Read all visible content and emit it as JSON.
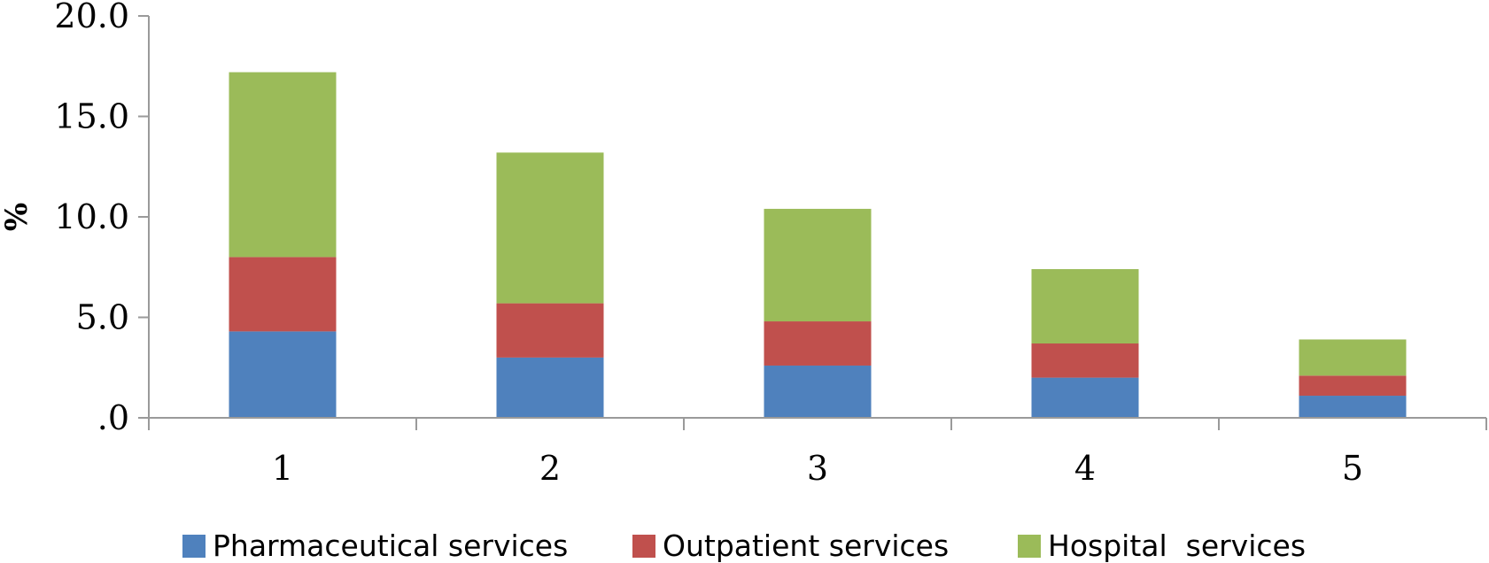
{
  "chart_data": {
    "type": "bar",
    "stacked": true,
    "categories": [
      "1",
      "2",
      "3",
      "4",
      "5"
    ],
    "series": [
      {
        "name": "Pharmaceutical services",
        "color": "#4f81bd",
        "values": [
          4.3,
          3.0,
          2.6,
          2.0,
          1.1
        ]
      },
      {
        "name": "Outpatient services",
        "color": "#c0504d",
        "values": [
          3.7,
          2.7,
          2.2,
          1.7,
          1.0
        ]
      },
      {
        "name": "Hospital  services",
        "color": "#9bbb59",
        "values": [
          9.2,
          7.5,
          5.6,
          3.7,
          1.8
        ]
      }
    ],
    "ylabel": "%",
    "xlabel": "",
    "ylim": [
      0,
      20
    ],
    "yticks": [
      0,
      5,
      10,
      15,
      20
    ],
    "ytick_labels": [
      ".0",
      "5.0",
      "10.0",
      "15.0",
      "20.0"
    ],
    "grid": false,
    "legend_position": "bottom"
  }
}
